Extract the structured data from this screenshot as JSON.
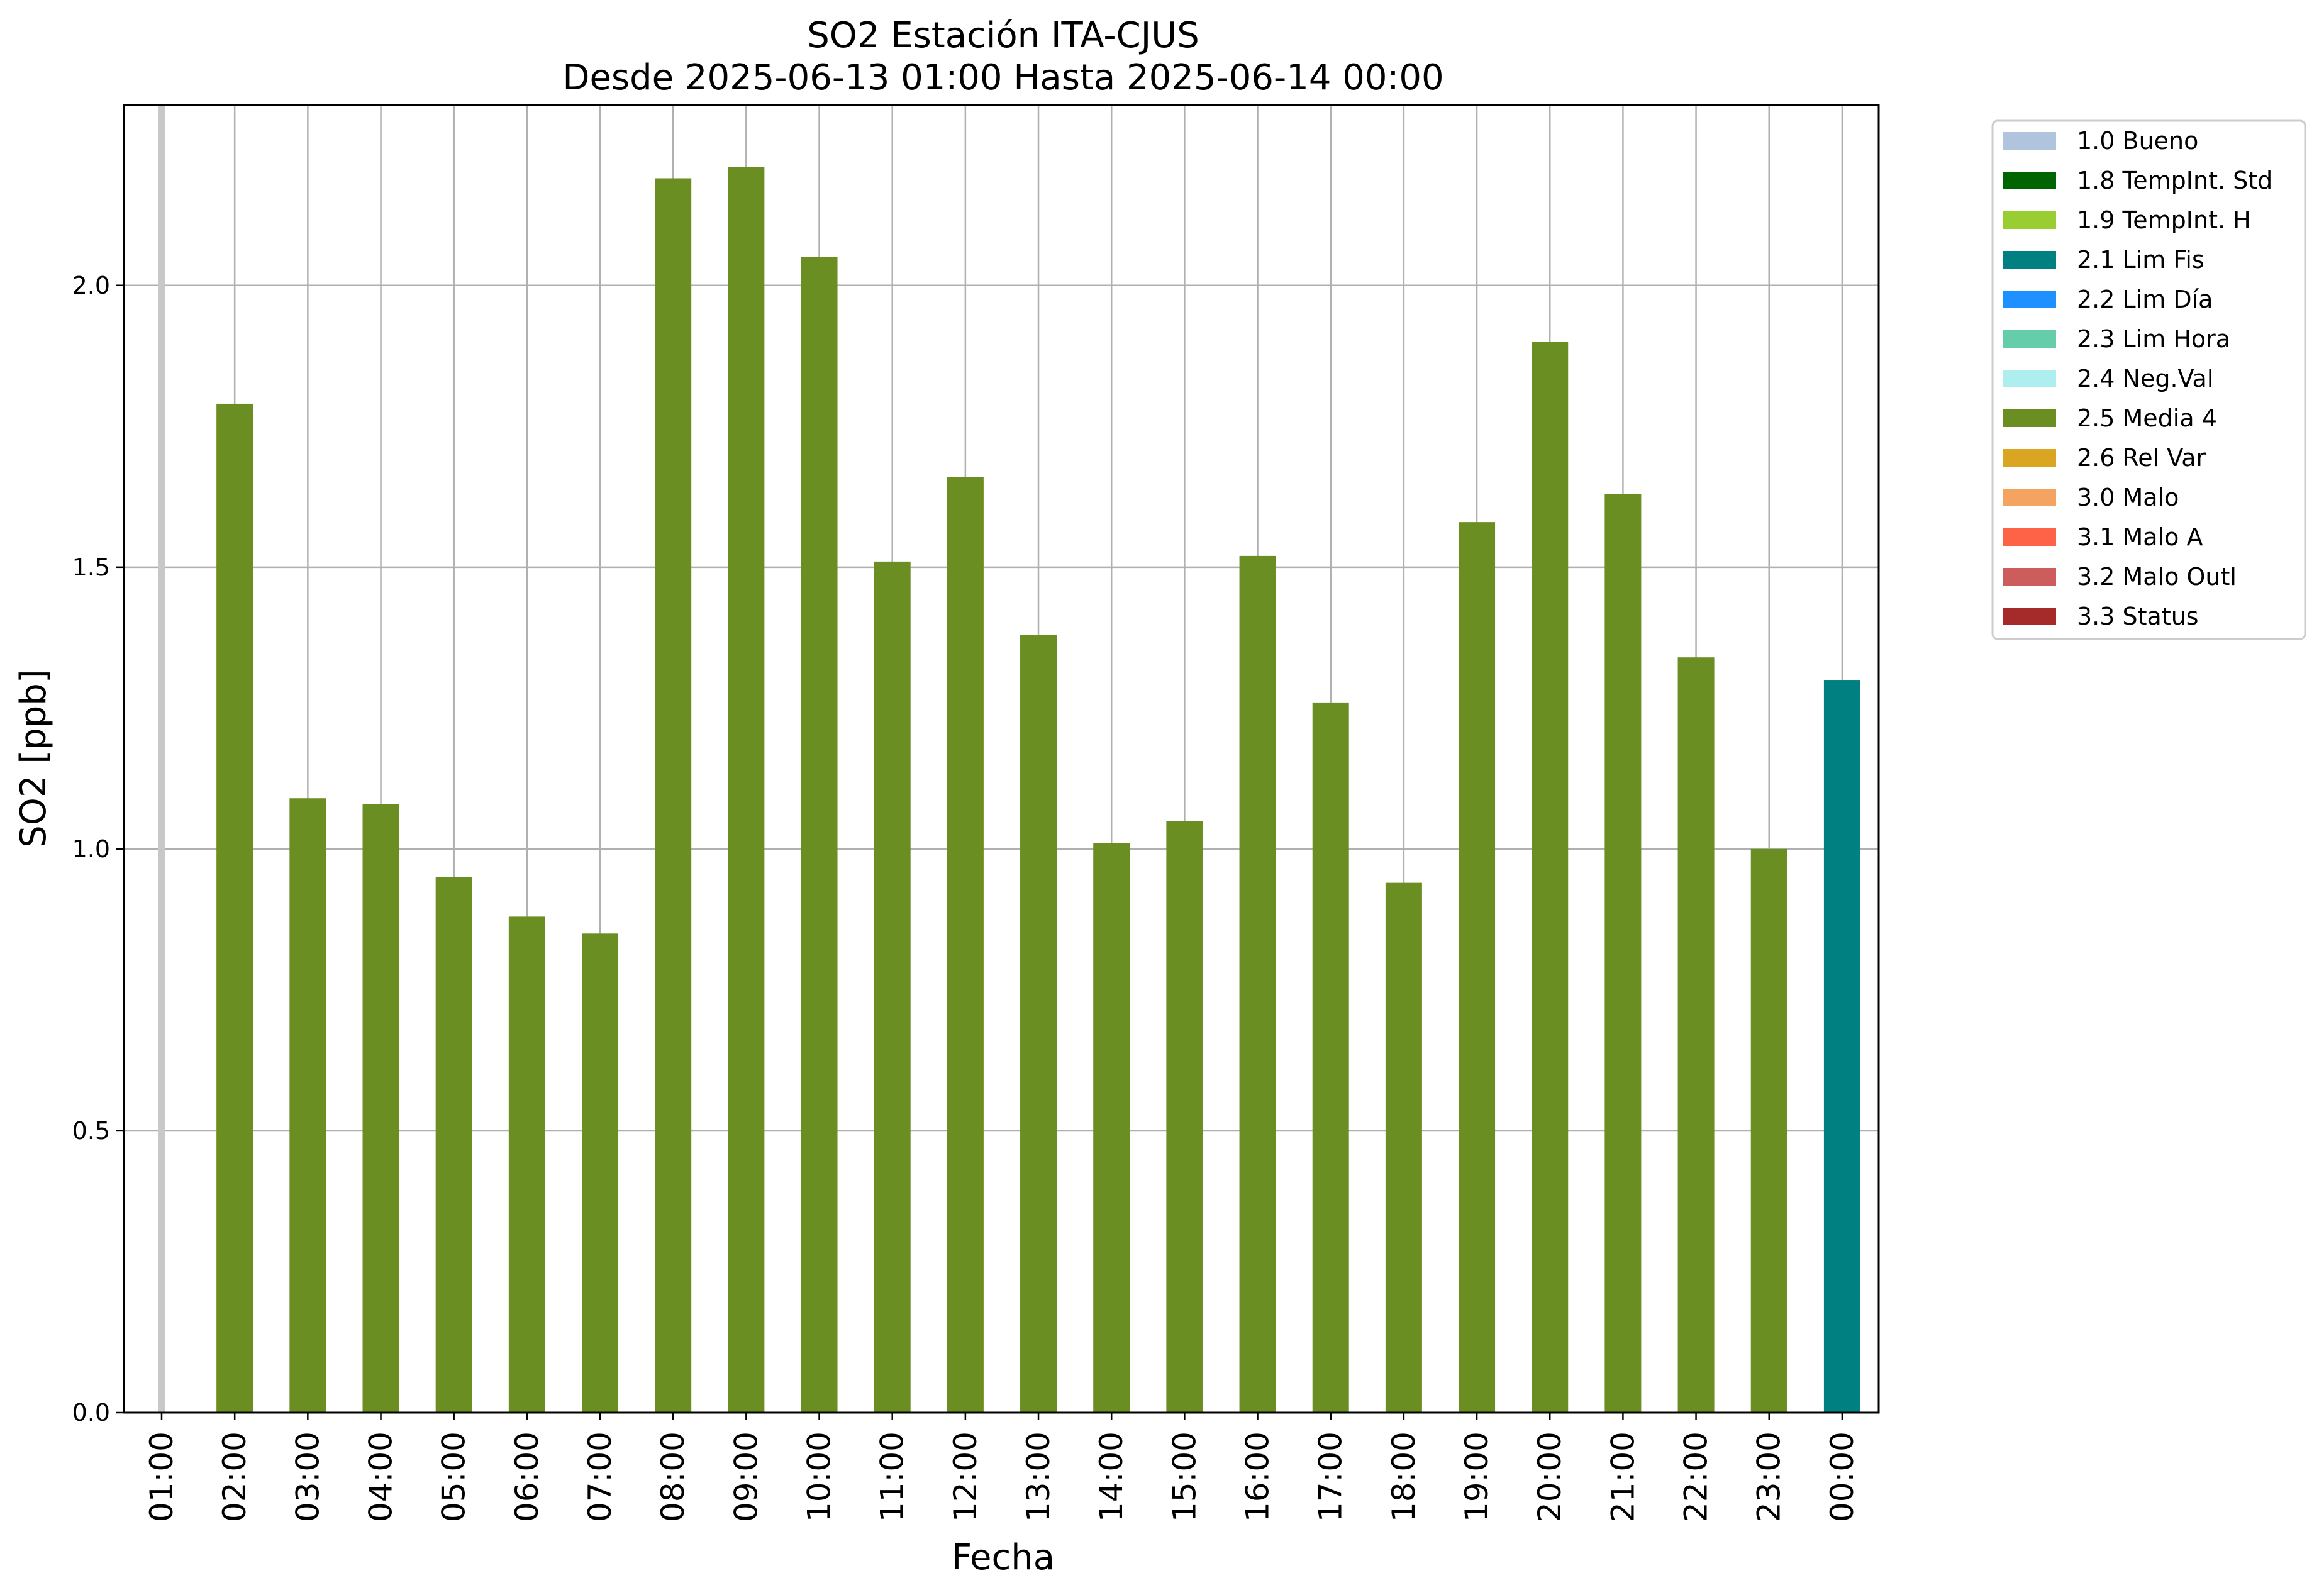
{
  "chart_data": {
    "type": "bar",
    "title": "SO2 Estación ITA-CJUS",
    "subtitle": "Desde 2025-06-13 01:00 Hasta 2025-06-14 00:00",
    "xlabel": "Fecha",
    "ylabel": "SO2 [ppb]",
    "ylim": [
      0,
      2.32
    ],
    "yticks": [
      0.0,
      0.5,
      1.0,
      1.5,
      2.0
    ],
    "ytick_labels": [
      "0.0",
      "0.5",
      "1.0",
      "1.5",
      "2.0"
    ],
    "grid": true,
    "categories": [
      "01:00",
      "02:00",
      "03:00",
      "04:00",
      "05:00",
      "06:00",
      "07:00",
      "08:00",
      "09:00",
      "10:00",
      "11:00",
      "12:00",
      "13:00",
      "14:00",
      "15:00",
      "16:00",
      "17:00",
      "18:00",
      "19:00",
      "20:00",
      "21:00",
      "22:00",
      "23:00",
      "00:00"
    ],
    "values": [
      null,
      1.79,
      1.09,
      1.08,
      0.95,
      0.88,
      0.85,
      2.19,
      2.21,
      2.05,
      1.51,
      1.66,
      1.38,
      1.01,
      1.05,
      1.52,
      1.26,
      0.94,
      1.58,
      1.9,
      1.63,
      1.34,
      1.0,
      1.3
    ],
    "flags": [
      "missing",
      "2.5 Media 4",
      "2.5 Media 4",
      "2.5 Media 4",
      "2.5 Media 4",
      "2.5 Media 4",
      "2.5 Media 4",
      "2.5 Media 4",
      "2.5 Media 4",
      "2.5 Media 4",
      "2.5 Media 4",
      "2.5 Media 4",
      "2.5 Media 4",
      "2.5 Media 4",
      "2.5 Media 4",
      "2.5 Media 4",
      "2.5 Media 4",
      "2.5 Media 4",
      "2.5 Media 4",
      "2.5 Media 4",
      "2.5 Media 4",
      "2.5 Media 4",
      "2.5 Media 4",
      "2.1 Lim Fis"
    ],
    "missing_marker_color": "#c8c8c8",
    "legend_position": "outside-top-right",
    "legend": [
      {
        "label": "1.0 Bueno",
        "color": "#b0c4de"
      },
      {
        "label": "1.8 TempInt. Std",
        "color": "#006400"
      },
      {
        "label": "1.9 TempInt. H",
        "color": "#9acd32"
      },
      {
        "label": "2.1 Lim Fis",
        "color": "#008080"
      },
      {
        "label": "2.2 Lim Día",
        "color": "#1e90ff"
      },
      {
        "label": "2.3 Lim Hora",
        "color": "#66cdaa"
      },
      {
        "label": "2.4 Neg.Val",
        "color": "#afeeee"
      },
      {
        "label": "2.5 Media 4",
        "color": "#6b8e23"
      },
      {
        "label": "2.6 Rel Var",
        "color": "#daa520"
      },
      {
        "label": "3.0 Malo",
        "color": "#f4a460"
      },
      {
        "label": "3.1 Malo A",
        "color": "#ff6347"
      },
      {
        "label": "3.2 Malo Outl",
        "color": "#cd5c5c"
      },
      {
        "label": "3.3 Status",
        "color": "#a52a2a"
      }
    ]
  }
}
